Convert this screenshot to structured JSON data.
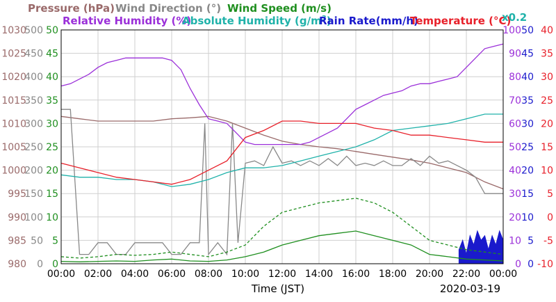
{
  "chart_data": {
    "type": "line",
    "date": "2020-03-19",
    "xlabel": "Time (JST)",
    "x_ticks": [
      "00:00",
      "02:00",
      "04:00",
      "06:00",
      "08:00",
      "10:00",
      "12:00",
      "14:00",
      "16:00",
      "18:00",
      "20:00",
      "22:00",
      "00:00"
    ],
    "abs_humidity_scale_note": "x0.2",
    "axes": {
      "pressure": {
        "label": "Pressure (hPa)",
        "color": "#9a6a6a",
        "range": [
          980,
          1030
        ],
        "ticks": [
          "1030",
          "1025",
          "1020",
          "1015",
          "1010",
          "1005",
          "1000",
          "995",
          "990",
          "985",
          "980"
        ]
      },
      "wind_dir": {
        "label": "Wind Direction (°)",
        "color": "#888888",
        "range": [
          0,
          500
        ],
        "ticks": [
          "500",
          "450",
          "400",
          "350",
          "300",
          "250",
          "200",
          "150",
          "100",
          "50",
          "0"
        ]
      },
      "wind_speed": {
        "label": "Wind Speed (m/s)",
        "color": "#1f8f1f",
        "range": [
          0,
          50
        ],
        "ticks": [
          "50",
          "45",
          "40",
          "35",
          "30",
          "25",
          "20",
          "15",
          "10",
          "5",
          "0"
        ]
      },
      "humidity": {
        "label": "Relative Humidity (%)",
        "color": "#9b30d9",
        "range": [
          0,
          100
        ],
        "ticks": [
          "100",
          "90",
          "80",
          "70",
          "60",
          "50",
          "40",
          "30",
          "20",
          "10",
          "0"
        ]
      },
      "abs_humidity": {
        "label_pre": "Absolute Humidity (g/m",
        "label_sup": "3",
        "label_post": ")",
        "color": "#20b2aa"
      },
      "rain": {
        "label": "Rain Rate(mm/h)",
        "color": "#1a1acc",
        "range": [
          0,
          50
        ],
        "ticks": [
          "50",
          "45",
          "40",
          "35",
          "30",
          "25",
          "20",
          "15",
          "10",
          "5",
          "0"
        ]
      },
      "temperature": {
        "label": "Temperature (°C)",
        "color": "#e8202a",
        "range": [
          -10,
          40
        ],
        "ticks": [
          "40",
          "35",
          "30",
          "25",
          "20",
          "15",
          "10",
          "5",
          "0",
          "-5",
          "-10"
        ]
      }
    },
    "series": [
      {
        "name": "Pressure (hPa)",
        "color": "#9a6a6a",
        "axis": "pressure",
        "x": [
          0,
          1,
          2,
          3,
          4,
          5,
          6,
          7,
          8,
          9,
          10,
          11,
          12,
          13,
          14,
          15,
          16,
          17,
          18,
          19,
          20,
          21,
          22,
          23,
          24
        ],
        "y": [
          1011.5,
          1011,
          1010.5,
          1010.5,
          1010.5,
          1010.5,
          1011,
          1011.2,
          1011.5,
          1010.5,
          1009,
          1007.5,
          1006.2,
          1005.5,
          1005,
          1004.6,
          1004,
          1003.4,
          1002.8,
          1002.2,
          1001.5,
          1000.5,
          999.5,
          997.5,
          996
        ]
      },
      {
        "name": "Wind Direction (°)",
        "color": "#888888",
        "axis": "wind_dir",
        "x": [
          0,
          0.5,
          1,
          1.5,
          2,
          2.5,
          3,
          3.5,
          4,
          4.5,
          5,
          5.5,
          6,
          6.5,
          7,
          7.5,
          7.8,
          8,
          8.5,
          9,
          9.3,
          9.6,
          10,
          10.5,
          11,
          11.5,
          12,
          12.5,
          13,
          13.5,
          14,
          14.5,
          15,
          15.5,
          16,
          16.5,
          17,
          17.5,
          18,
          18.5,
          19,
          19.5,
          20,
          20.5,
          21,
          21.5,
          22,
          22.5,
          23,
          23.5,
          24
        ],
        "y": [
          330,
          330,
          20,
          20,
          45,
          45,
          20,
          20,
          45,
          45,
          45,
          45,
          20,
          20,
          45,
          45,
          300,
          20,
          45,
          20,
          300,
          45,
          215,
          220,
          210,
          250,
          215,
          220,
          210,
          220,
          210,
          225,
          210,
          230,
          210,
          215,
          210,
          220,
          210,
          210,
          225,
          210,
          230,
          215,
          220,
          210,
          200,
          185,
          150,
          150,
          150
        ]
      },
      {
        "name": "Wind Speed (m/s)",
        "color": "#1f8f1f",
        "axis": "wind_speed",
        "dash": "0",
        "x": [
          0,
          1,
          2,
          3,
          4,
          5,
          6,
          7,
          8,
          9,
          10,
          11,
          12,
          13,
          14,
          15,
          16,
          17,
          18,
          19,
          20,
          21,
          22,
          23,
          24
        ],
        "y": [
          0.5,
          0.4,
          0.5,
          0.6,
          0.5,
          0.8,
          1,
          0.6,
          0.5,
          0.8,
          1.5,
          2.5,
          4,
          5,
          6,
          6.5,
          7,
          6,
          5,
          4,
          2,
          1.5,
          1,
          0.8,
          0.6
        ]
      },
      {
        "name": "Wind Speed gust",
        "color": "#1f8f1f",
        "axis": "wind_speed",
        "dash": "4,3",
        "x": [
          0,
          1,
          2,
          3,
          4,
          5,
          6,
          7,
          8,
          9,
          10,
          11,
          12,
          13,
          14,
          15,
          16,
          17,
          18,
          19,
          20,
          21,
          22,
          23,
          24
        ],
        "y": [
          1.5,
          1.2,
          1.5,
          2,
          1.8,
          2,
          2.5,
          2,
          1.5,
          2.5,
          4,
          8,
          11,
          12,
          13,
          13.5,
          14,
          13,
          11,
          8,
          5,
          4,
          3,
          2.5,
          2
        ]
      },
      {
        "name": "Relative Humidity (%)",
        "color": "#9b30d9",
        "axis": "humidity",
        "x": [
          0,
          0.5,
          1,
          1.5,
          2,
          2.5,
          3,
          3.5,
          4,
          4.5,
          5,
          5.5,
          6,
          6.5,
          7,
          7.5,
          8,
          8.5,
          9,
          9.5,
          10,
          10.5,
          11,
          11.5,
          12,
          12.5,
          13,
          13.5,
          14,
          14.5,
          15,
          15.5,
          16,
          16.5,
          17,
          17.5,
          18,
          18.5,
          19,
          19.5,
          20,
          20.5,
          21,
          21.5,
          22,
          22.5,
          23,
          23.5,
          24
        ],
        "y": [
          76,
          77,
          79,
          81,
          84,
          86,
          87,
          88,
          88,
          88,
          88,
          88,
          87,
          83,
          75,
          68,
          62,
          61,
          60,
          56,
          52,
          51,
          51,
          51,
          51,
          51,
          51,
          52,
          54,
          56,
          58,
          62,
          66,
          68,
          70,
          72,
          73,
          74,
          76,
          77,
          77,
          78,
          79,
          80,
          84,
          88,
          92,
          93,
          94
        ]
      },
      {
        "name": "Absolute Humidity",
        "color": "#20b2aa",
        "axis": "abs_humidity",
        "x": [
          0,
          1,
          2,
          3,
          4,
          5,
          6,
          7,
          8,
          9,
          10,
          11,
          12,
          13,
          14,
          15,
          16,
          17,
          18,
          19,
          20,
          21,
          22,
          23,
          24
        ],
        "y": [
          38,
          37,
          37,
          36,
          36,
          35,
          33,
          34,
          36,
          39,
          41,
          41,
          42,
          44,
          46,
          48,
          50,
          53,
          57,
          58,
          59,
          60,
          62,
          64,
          64
        ]
      },
      {
        "name": "Temperature (°C)",
        "color": "#e8202a",
        "axis": "temperature",
        "x": [
          0,
          1,
          2,
          3,
          4,
          5,
          6,
          7,
          8,
          9,
          10,
          11,
          12,
          13,
          14,
          15,
          16,
          17,
          18,
          19,
          20,
          21,
          22,
          23,
          24
        ],
        "y": [
          11.5,
          10.5,
          9.5,
          8.5,
          8,
          7.5,
          7,
          8,
          10,
          12,
          17,
          18.5,
          20.5,
          20.5,
          20,
          20,
          20,
          19,
          18.5,
          17.5,
          17.5,
          17,
          16.5,
          16,
          16
        ]
      }
    ],
    "rain": {
      "name": "Rain Rate(mm/h)",
      "color": "#1a1acc",
      "axis": "rain",
      "x": [
        21.6,
        21.8,
        22,
        22.2,
        22.4,
        22.6,
        22.8,
        23,
        23.2,
        23.4,
        23.6,
        23.8,
        24
      ],
      "y": [
        3,
        5,
        2,
        6,
        4,
        7,
        5,
        6,
        3,
        6,
        4,
        7,
        5
      ]
    },
    "grid": true
  }
}
